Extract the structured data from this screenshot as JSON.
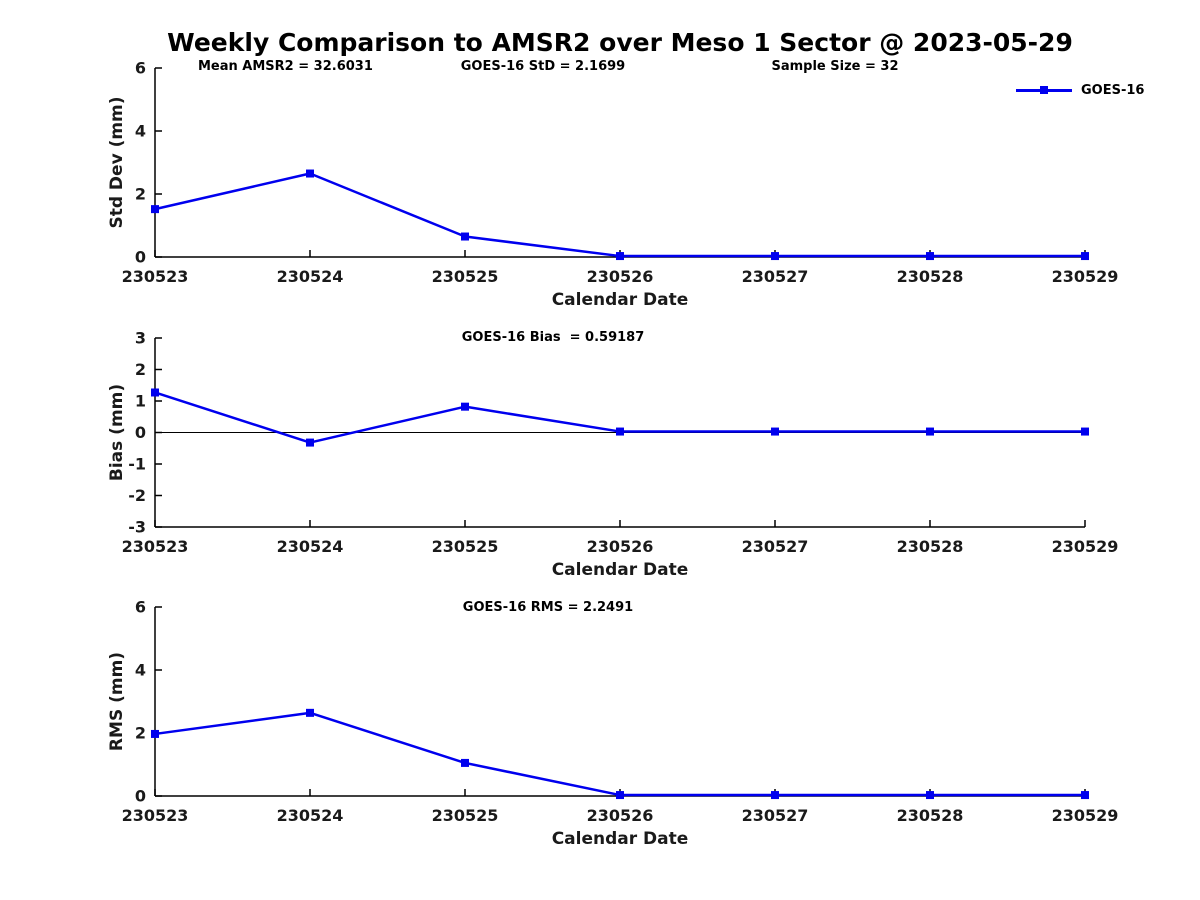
{
  "figure": {
    "title": "Weekly Comparison to AMSR2 over Meso 1 Sector @ 2023-05-29",
    "annotations": [
      {
        "id": "mean-amsr2",
        "text": "Mean AMSR2 = 32.6031"
      },
      {
        "id": "goes16-std",
        "text": "GOES-16 StD = 2.1699"
      },
      {
        "id": "sample-size",
        "text": "Sample Size = 32"
      }
    ],
    "legend": {
      "label": "GOES-16",
      "color": "#0000ee",
      "marker": "filled-square"
    }
  },
  "chart_data": [
    {
      "id": "stddev",
      "type": "line",
      "title": "",
      "xlabel": "Calendar Date",
      "ylabel": "Std Dev (mm)",
      "categories": [
        "230523",
        "230524",
        "230525",
        "230526",
        "230527",
        "230528",
        "230529"
      ],
      "series": [
        {
          "name": "GOES-16",
          "color": "#0000ee",
          "marker": "square",
          "values": [
            1.52,
            2.65,
            0.65,
            0.03,
            0.03,
            0.03,
            0.03
          ]
        }
      ],
      "ylim": [
        0,
        6
      ],
      "yticks": [
        0,
        2,
        4,
        6
      ],
      "zero_line": false,
      "grid": false,
      "legend_position": "top-right"
    },
    {
      "id": "bias",
      "type": "line",
      "title": "GOES-16 Bias  = 0.59187",
      "xlabel": "Calendar Date",
      "ylabel": "Bias (mm)",
      "categories": [
        "230523",
        "230524",
        "230525",
        "230526",
        "230527",
        "230528",
        "230529"
      ],
      "series": [
        {
          "name": "GOES-16",
          "color": "#0000ee",
          "marker": "square",
          "values": [
            1.27,
            -0.32,
            0.82,
            0.03,
            0.03,
            0.03,
            0.03
          ]
        }
      ],
      "ylim": [
        -3,
        3
      ],
      "yticks": [
        3,
        2,
        1,
        0,
        -1,
        -2,
        -3
      ],
      "zero_line": true,
      "grid": false,
      "legend_position": "none"
    },
    {
      "id": "rms",
      "type": "line",
      "title": "GOES-16 RMS = 2.2491",
      "xlabel": "Calendar Date",
      "ylabel": "RMS (mm)",
      "categories": [
        "230523",
        "230524",
        "230525",
        "230526",
        "230527",
        "230528",
        "230529"
      ],
      "series": [
        {
          "name": "GOES-16",
          "color": "#0000ee",
          "marker": "square",
          "values": [
            1.97,
            2.64,
            1.05,
            0.03,
            0.03,
            0.03,
            0.03
          ]
        }
      ],
      "ylim": [
        0,
        6
      ],
      "yticks": [
        0,
        2,
        4,
        6
      ],
      "zero_line": false,
      "grid": false,
      "legend_position": "none"
    }
  ]
}
